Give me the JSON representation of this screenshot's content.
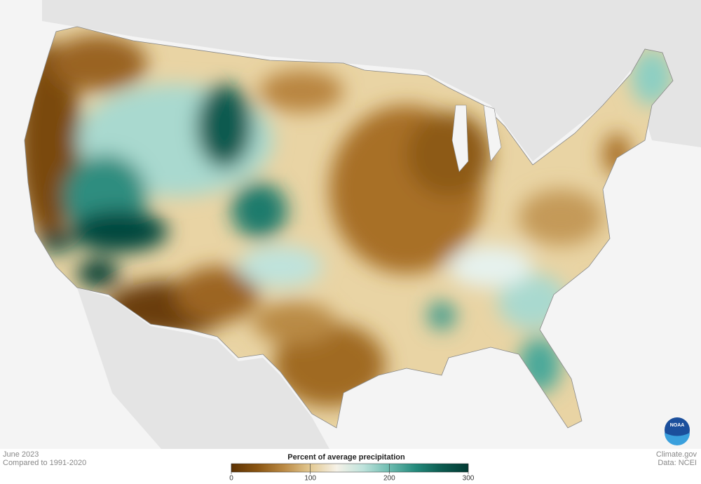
{
  "header": {
    "month": "June 2023",
    "baseline": "Compared to 1991-2020"
  },
  "legend": {
    "title": "Percent of average precipitation",
    "ticks": [
      0,
      100,
      200,
      300
    ],
    "colors": [
      "#5c3203",
      "#8a5512",
      "#bb8a45",
      "#e3c992",
      "#f6f2e8",
      "#bfe3dc",
      "#6dbcb0",
      "#248a7c",
      "#0b5a4f",
      "#023a33"
    ]
  },
  "credits": {
    "site": "Climate.gov",
    "source": "Data: NCEI",
    "logo": "NOAA"
  }
}
